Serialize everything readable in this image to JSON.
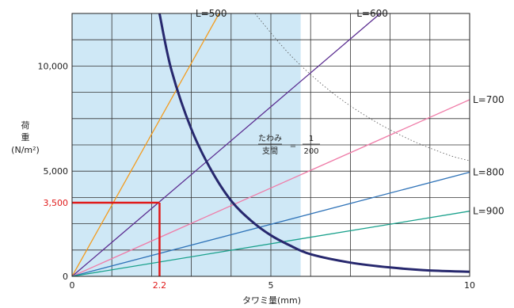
{
  "chart_data": {
    "type": "line",
    "xlabel": "タワミ量(mm)",
    "ylabel_top": "荷",
    "ylabel_mid": "重",
    "ylabel_unit": "(N/m²)",
    "xlim": [
      0,
      10
    ],
    "ylim": [
      0,
      12500
    ],
    "x_ticks": [
      {
        "value": 0,
        "label": "0"
      },
      {
        "value": 2.2,
        "label": "2.2",
        "highlight": true
      },
      {
        "value": 5,
        "label": "5"
      },
      {
        "value": 10,
        "label": "10"
      }
    ],
    "y_ticks": [
      {
        "value": 0,
        "label": "0"
      },
      {
        "value": 3500,
        "label": "3,500",
        "highlight": true
      },
      {
        "value": 5000,
        "label": "5,000"
      },
      {
        "value": 10000,
        "label": "10,000"
      }
    ],
    "grid": true,
    "shaded_region": {
      "x": [
        0,
        5.75
      ],
      "color": "#cfe8f6"
    },
    "series": [
      {
        "name": "L=500",
        "color": "#f39c1f",
        "points": [
          [
            0,
            0
          ],
          [
            3.7,
            12500
          ]
        ]
      },
      {
        "name": "L=600",
        "color": "#5b2d91",
        "points": [
          [
            0,
            0
          ],
          [
            7.75,
            12500
          ]
        ]
      },
      {
        "name": "L=700",
        "color": "#ef7ca8",
        "points": [
          [
            0,
            0
          ],
          [
            10,
            8400
          ]
        ]
      },
      {
        "name": "L=800",
        "color": "#2f73b8",
        "points": [
          [
            0,
            0
          ],
          [
            10,
            4950
          ]
        ]
      },
      {
        "name": "L=900",
        "color": "#1aa18c",
        "points": [
          [
            0,
            0
          ],
          [
            10,
            3100
          ]
        ]
      }
    ],
    "limit_curve": {
      "color": "#27286e",
      "points": [
        [
          2.2,
          12500
        ],
        [
          2.5,
          9800
        ],
        [
          3.0,
          7000
        ],
        [
          3.5,
          5050
        ],
        [
          4.0,
          3600
        ],
        [
          4.5,
          2650
        ],
        [
          5.0,
          1950
        ],
        [
          5.5,
          1450
        ],
        [
          6.0,
          1050
        ],
        [
          7.0,
          650
        ],
        [
          8.0,
          420
        ],
        [
          9.0,
          280
        ],
        [
          10.0,
          220
        ]
      ]
    },
    "dotted_curve": {
      "color": "#555555",
      "points": [
        [
          4.6,
          12500
        ],
        [
          5.5,
          10500
        ],
        [
          6.5,
          8800
        ],
        [
          7.5,
          7500
        ],
        [
          8.5,
          6500
        ],
        [
          9.5,
          5750
        ],
        [
          10.0,
          5500
        ]
      ]
    },
    "example_point": {
      "x": 2.2,
      "y": 3500,
      "color": "#e01a1a"
    },
    "annotation": {
      "lhs_numer": "たわみ",
      "lhs_denom": "支間",
      "eq": "=",
      "rhs_numer": "1",
      "rhs_denom": "200",
      "at": [
        5.5,
        6600
      ]
    }
  }
}
